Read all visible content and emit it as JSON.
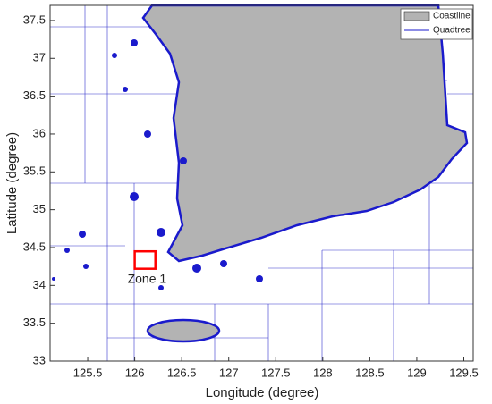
{
  "chart_data": {
    "type": "map",
    "x_label": "Longitude (degree)",
    "y_label": "Latitude (degree)",
    "xlim": [
      125.1,
      129.6
    ],
    "xticks": [
      125.5,
      126,
      126.5,
      127,
      127.5,
      128,
      128.5,
      129,
      129.5
    ],
    "ylim": [
      33,
      37.7
    ],
    "yticks": [
      33,
      33.5,
      34,
      34.5,
      35,
      35.5,
      36,
      36.5,
      37,
      37.5
    ],
    "series": [
      {
        "name": "Coastline",
        "color": "#b3b3b3"
      },
      {
        "name": "Quadtree",
        "color": "#1a1acc"
      }
    ],
    "legend": "upper right",
    "annotations": [
      {
        "text": "Zone 1",
        "color": "#ff0000",
        "xlim": [
          126.0,
          126.22
        ],
        "ylim": [
          34.22,
          34.45
        ]
      }
    ]
  }
}
